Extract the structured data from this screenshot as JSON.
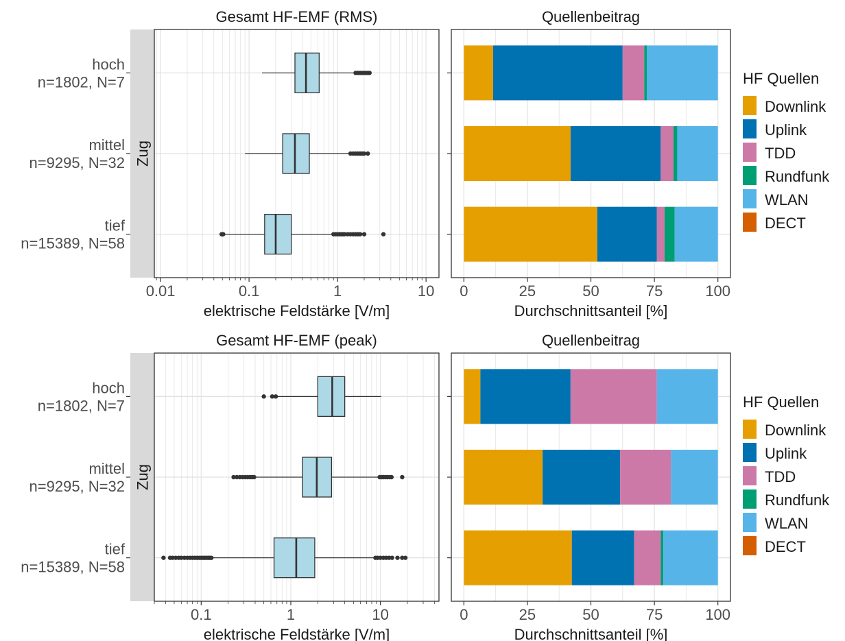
{
  "chart_data": [
    {
      "type": "boxplot",
      "title": "Gesamt HF-EMF (RMS)",
      "xlabel": "elektrische Feldstärke [V/m]",
      "xscale": "log10",
      "xlim": [
        0.0085,
        14
      ],
      "xticks": [
        0.01,
        0.1,
        1,
        10
      ],
      "xtick_labels": [
        "0.01",
        "0.1",
        "1",
        "10"
      ],
      "facet_label": "Zug",
      "box_color": "#add8e6",
      "categories": [
        {
          "name": "hoch",
          "label": "hoch\nn=1802, N=7",
          "label_line1": "hoch",
          "label_line2": "n=1802, N=7",
          "whisker_low": 0.14,
          "q1": 0.33,
          "median": 0.44,
          "q3": 0.62,
          "whisker_high": 1.55,
          "outliers": [
            1.6,
            1.7,
            1.8,
            1.9,
            2.0,
            2.1,
            2.2,
            2.3
          ]
        },
        {
          "name": "mittel",
          "label": "mittel\nn=9295, N=32",
          "label_line1": "mittel",
          "label_line2": "n=9295, N=32",
          "whisker_low": 0.09,
          "q1": 0.24,
          "median": 0.33,
          "q3": 0.48,
          "whisker_high": 1.35,
          "outliers": [
            1.4,
            1.5,
            1.6,
            1.7,
            1.8,
            1.9,
            2.0,
            2.2
          ]
        },
        {
          "name": "tief",
          "label": "tief\nn=15389, N=58",
          "label_line1": "tief",
          "label_line2": "n=15389, N=58",
          "whisker_low": 0.052,
          "q1": 0.15,
          "median": 0.2,
          "q3": 0.3,
          "whisker_high": 0.85,
          "outliers": [
            0.049,
            0.05,
            0.051,
            0.9,
            0.95,
            1.0,
            1.05,
            1.1,
            1.15,
            1.2,
            1.3,
            1.4,
            1.5,
            1.6,
            1.7,
            1.8,
            2.0,
            3.3
          ]
        }
      ]
    },
    {
      "type": "bar",
      "orientation": "horizontal",
      "stacked": true,
      "title": "Quellenbeitrag",
      "xlabel": "Durchschnittsanteil [%]",
      "xlim": [
        0,
        100
      ],
      "xticks": [
        0,
        25,
        50,
        75,
        100
      ],
      "categories": [
        "hoch",
        "mittel",
        "tief"
      ],
      "series": [
        {
          "name": "Downlink",
          "color": "#E69F00",
          "values": [
            11.5,
            42.0,
            52.5
          ]
        },
        {
          "name": "Uplink",
          "color": "#0072B2",
          "values": [
            51.0,
            35.5,
            23.5
          ]
        },
        {
          "name": "TDD",
          "color": "#CC79A7",
          "values": [
            8.5,
            5.0,
            3.0
          ]
        },
        {
          "name": "Rundfunk",
          "color": "#009E73",
          "values": [
            1.0,
            1.5,
            4.0
          ]
        },
        {
          "name": "WLAN",
          "color": "#56B4E9",
          "values": [
            28.0,
            16.0,
            17.0
          ]
        },
        {
          "name": "DECT",
          "color": "#D55E00",
          "values": [
            0.0,
            0.0,
            0.0
          ]
        }
      ]
    },
    {
      "type": "boxplot",
      "title": "Gesamt HF-EMF (peak)",
      "xlabel": "elektrische Feldstärke [V/m]",
      "xscale": "log10",
      "xlim": [
        0.03,
        45
      ],
      "xticks": [
        0.1,
        1,
        10
      ],
      "xtick_labels": [
        "0.1",
        "1",
        "10"
      ],
      "facet_label": "Zug",
      "box_color": "#add8e6",
      "categories": [
        {
          "name": "hoch",
          "label": "hoch\nn=1802, N=7",
          "label_line1": "hoch",
          "label_line2": "n=1802, N=7",
          "whisker_low": 0.7,
          "q1": 2.0,
          "median": 2.9,
          "q3": 4.0,
          "whisker_high": 10.2,
          "outliers": [
            0.5,
            0.62,
            0.68
          ]
        },
        {
          "name": "mittel",
          "label": "mittel\nn=9295, N=32",
          "label_line1": "mittel",
          "label_line2": "n=9295, N=32",
          "whisker_low": 0.4,
          "q1": 1.35,
          "median": 1.95,
          "q3": 2.85,
          "whisker_high": 9.5,
          "outliers": [
            0.23,
            0.25,
            0.27,
            0.29,
            0.31,
            0.33,
            0.35,
            0.37,
            0.39,
            9.8,
            10.3,
            10.8,
            11.4,
            12.0,
            12.7,
            13.3,
            17.5
          ]
        },
        {
          "name": "tief",
          "label": "tief\nn=15389, N=58",
          "label_line1": "tief",
          "label_line2": "n=15389, N=58",
          "whisker_low": 0.135,
          "q1": 0.65,
          "median": 1.15,
          "q3": 1.85,
          "whisker_high": 8.5,
          "outliers": [
            0.038,
            0.045,
            0.048,
            0.052,
            0.056,
            0.06,
            0.065,
            0.07,
            0.075,
            0.08,
            0.085,
            0.09,
            0.095,
            0.1,
            0.105,
            0.11,
            0.115,
            0.12,
            0.125,
            0.13,
            8.8,
            9.3,
            10.0,
            10.8,
            11.6,
            12.5,
            13.5,
            15.5,
            17.5,
            19.0
          ]
        }
      ]
    },
    {
      "type": "bar",
      "orientation": "horizontal",
      "stacked": true,
      "title": "Quellenbeitrag",
      "xlabel": "Durchschnittsanteil [%]",
      "xlim": [
        0,
        100
      ],
      "xticks": [
        0,
        25,
        50,
        75,
        100
      ],
      "categories": [
        "hoch",
        "mittel",
        "tief"
      ],
      "series": [
        {
          "name": "Downlink",
          "color": "#E69F00",
          "values": [
            6.5,
            31.0,
            42.5
          ]
        },
        {
          "name": "Uplink",
          "color": "#0072B2",
          "values": [
            35.5,
            30.5,
            24.5
          ]
        },
        {
          "name": "TDD",
          "color": "#CC79A7",
          "values": [
            34.0,
            20.0,
            10.5
          ]
        },
        {
          "name": "Rundfunk",
          "color": "#009E73",
          "values": [
            0.0,
            0.0,
            1.0
          ]
        },
        {
          "name": "WLAN",
          "color": "#56B4E9",
          "values": [
            24.0,
            18.5,
            21.5
          ]
        },
        {
          "name": "DECT",
          "color": "#D55E00",
          "values": [
            0.0,
            0.0,
            0.0
          ]
        }
      ]
    }
  ],
  "legends": [
    {
      "title": "HF Quellen",
      "items": [
        {
          "label": "Downlink",
          "color": "#E69F00"
        },
        {
          "label": "Uplink",
          "color": "#0072B2"
        },
        {
          "label": "TDD",
          "color": "#CC79A7"
        },
        {
          "label": "Rundfunk",
          "color": "#009E73"
        },
        {
          "label": "WLAN",
          "color": "#56B4E9"
        },
        {
          "label": "DECT",
          "color": "#D55E00"
        }
      ]
    },
    {
      "title": "HF Quellen",
      "items": [
        {
          "label": "Downlink",
          "color": "#E69F00"
        },
        {
          "label": "Uplink",
          "color": "#0072B2"
        },
        {
          "label": "TDD",
          "color": "#CC79A7"
        },
        {
          "label": "Rundfunk",
          "color": "#009E73"
        },
        {
          "label": "WLAN",
          "color": "#56B4E9"
        },
        {
          "label": "DECT",
          "color": "#D55E00"
        }
      ]
    }
  ]
}
